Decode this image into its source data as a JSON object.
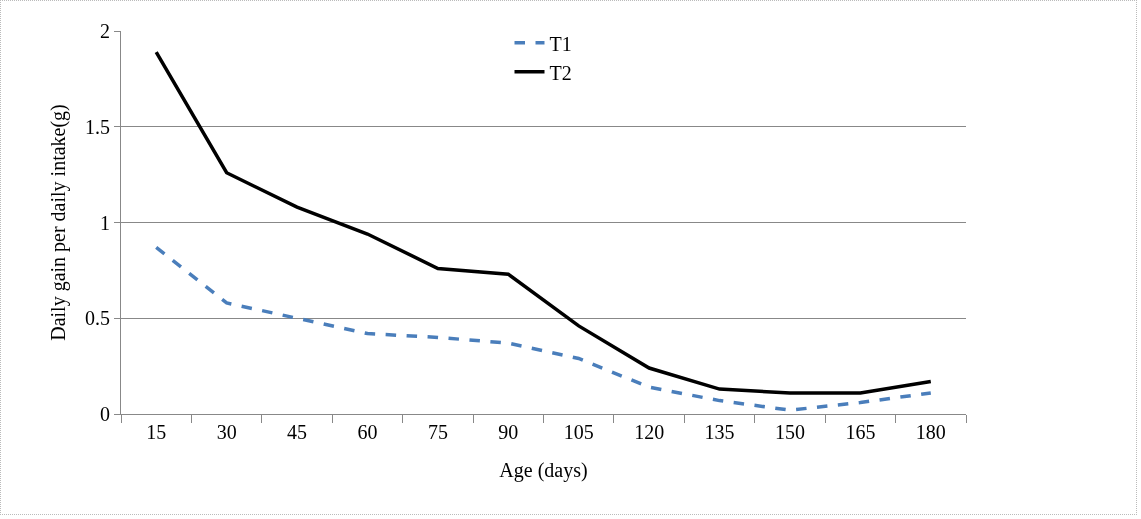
{
  "chart_data": {
    "type": "line",
    "xlabel": "Age (days)",
    "ylabel": "Daily gain per daily intake(g)",
    "categories": [
      "15",
      "30",
      "45",
      "60",
      "75",
      "90",
      "105",
      "120",
      "135",
      "150",
      "165",
      "180"
    ],
    "series": [
      {
        "name": "T1",
        "color": "#4a7ebb",
        "line_style": "dashed",
        "values": [
          0.87,
          0.58,
          0.5,
          0.42,
          0.4,
          0.37,
          0.29,
          0.14,
          0.07,
          0.02,
          0.06,
          0.11
        ]
      },
      {
        "name": "T2",
        "color": "#000000",
        "line_style": "solid",
        "values": [
          1.89,
          1.26,
          1.08,
          0.94,
          0.76,
          0.73,
          0.46,
          0.24,
          0.13,
          0.11,
          0.11,
          0.17
        ]
      }
    ],
    "ylim": [
      0,
      2
    ],
    "yticks": [
      0,
      0.5,
      1,
      1.5,
      2
    ],
    "grid": "y",
    "legend": "top",
    "marker": "none"
  }
}
